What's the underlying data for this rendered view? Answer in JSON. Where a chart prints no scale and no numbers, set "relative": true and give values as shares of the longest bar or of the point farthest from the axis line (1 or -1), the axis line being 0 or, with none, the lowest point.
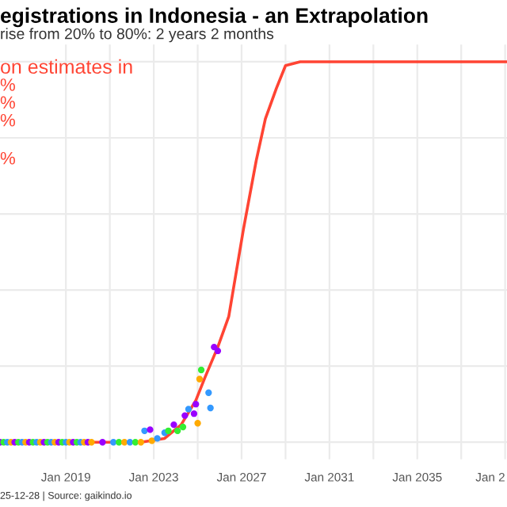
{
  "chart_data": {
    "type": "line",
    "title": "egistrations in Indonesia - an Extrapolation",
    "subtitle": "rise from 20% to 80%: 2 years 2 months",
    "annotations": [
      "on estimates in",
      "%",
      "%",
      "%",
      "%",
      "25-12-28 | Source: gaikindo.io"
    ],
    "relative": true,
    "grid": true,
    "xlim": [
      "2016-01",
      "2039-02"
    ],
    "xticks": [
      {
        "value": "2019-01",
        "label": "Jan 2019"
      },
      {
        "value": "2023-01",
        "label": "Jan 2023"
      },
      {
        "value": "2027-01",
        "label": "Jan 2027"
      },
      {
        "value": "2031-01",
        "label": "Jan 2031"
      },
      {
        "value": "2035-01",
        "label": "Jan 2035"
      },
      {
        "value": "2039-01",
        "label": "Jan 2"
      }
    ],
    "series": [
      {
        "color": "#ff4433",
        "x": [
          "2016-01",
          "2022-06",
          "2023-07",
          "2024-04",
          "2024-12",
          "2025-05",
          "2025-12",
          "2026-06",
          "2027-02",
          "2027-09",
          "2028-02",
          "2028-08",
          "2029-01",
          "2029-09",
          "2039-02"
        ],
        "values": [
          0,
          0,
          0.01,
          0.046,
          0.11,
          0.17,
          0.25,
          0.33,
          0.56,
          0.74,
          0.85,
          0.93,
          0.99,
          1.0,
          1.0
        ]
      },
      {
        "type": "scatter",
        "marker": "circle",
        "x": [
          "2016-01",
          "2016-03",
          "2016-05",
          "2016-07",
          "2016-09",
          "2016-11",
          "2017-01",
          "2017-03",
          "2017-05",
          "2017-07",
          "2017-09",
          "2017-11",
          "2018-01",
          "2018-03",
          "2018-05",
          "2018-07",
          "2018-09",
          "2018-11",
          "2019-01",
          "2019-03",
          "2019-05",
          "2019-07",
          "2019-09",
          "2019-11",
          "2020-01",
          "2020-03",
          "2020-09",
          "2021-03",
          "2021-06",
          "2021-09",
          "2021-12",
          "2022-03",
          "2022-06",
          "2022-08",
          "2022-11",
          "2022-12",
          "2023-03",
          "2023-07",
          "2023-09",
          "2023-12",
          "2024-02",
          "2024-05",
          "2024-06",
          "2024-08",
          "2024-11",
          "2024-12",
          "2025-01",
          "2025-02",
          "2025-03",
          "2025-07",
          "2025-08",
          "2025-10",
          "2025-12"
        ],
        "values": [
          0,
          0,
          0,
          0,
          0,
          0,
          0,
          0,
          0,
          0,
          0,
          0,
          0,
          0,
          0,
          0,
          0,
          0,
          0,
          0,
          0,
          0,
          0,
          0,
          0,
          0,
          0,
          0,
          0,
          0,
          0,
          0,
          0,
          0.03,
          0.033,
          0.004,
          0.01,
          0.025,
          0.03,
          0.046,
          0.03,
          0.04,
          0.07,
          0.087,
          0.075,
          0.1,
          0.05,
          0.166,
          0.19,
          0.13,
          0.09,
          0.25,
          0.24
        ],
        "colors": [
          "#9900ff",
          "#33ee33",
          "#3399ff",
          "#ffaa00",
          "#9900ff",
          "#33ee33",
          "#3399ff",
          "#ffaa00",
          "#9900ff",
          "#33ee33",
          "#3399ff",
          "#ffaa00",
          "#9900ff",
          "#33ee33",
          "#3399ff",
          "#ffaa00",
          "#9900ff",
          "#33ee33",
          "#3399ff",
          "#ffaa00",
          "#9900ff",
          "#33ee33",
          "#3399ff",
          "#ffaa00",
          "#9900ff",
          "#ffaa00",
          "#9900ff",
          "#3399ff",
          "#33ee33",
          "#ffaa00",
          "#3399ff",
          "#33ee33",
          "#ffaa00",
          "#3399ff",
          "#9900ff",
          "#ffaa00",
          "#3399ff",
          "#3399ff",
          "#33ee33",
          "#9900ff",
          "#33ee33",
          "#33ee33",
          "#9900ff",
          "#3399ff",
          "#9900ff",
          "#9900ff",
          "#ffaa00",
          "#ffaa00",
          "#33ee33",
          "#3399ff",
          "#3399ff",
          "#9900ff",
          "#9900ff"
        ]
      }
    ]
  }
}
